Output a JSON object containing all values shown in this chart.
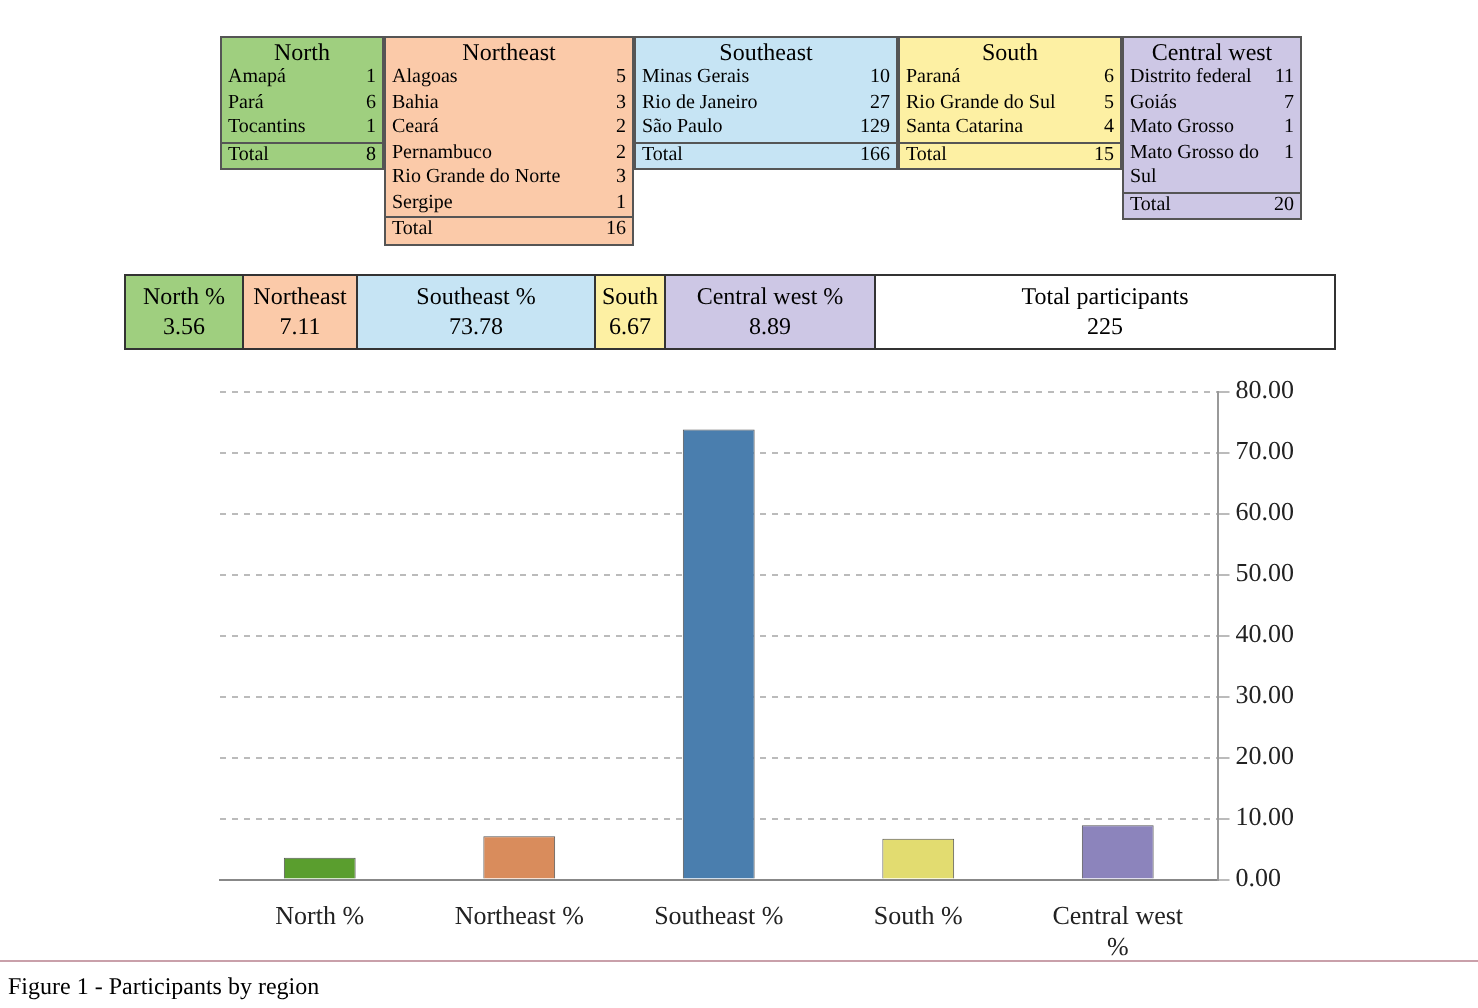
{
  "chart_data": [
    {
      "type": "other",
      "categories": [
        "North",
        "Northeast",
        "Southeast",
        "South",
        "Central west"
      ],
      "colors": [
        "#9fcf7f",
        "#fbcaa9",
        "#c6e4f4",
        "#fdf0a3",
        "#cdc7e5"
      ],
      "annotations": [
        {
          "text": "Amapá",
          "x": "North"
        },
        {
          "text": "1",
          "x": "North"
        },
        {
          "text": "Pará",
          "x": "North"
        },
        {
          "text": "6",
          "x": "North"
        },
        {
          "text": "Tocantins",
          "x": "North"
        },
        {
          "text": "1",
          "x": "North"
        },
        {
          "text": "Total",
          "x": "North"
        },
        {
          "text": "8",
          "x": "North"
        },
        {
          "text": "Alagoas",
          "x": "Northeast"
        },
        {
          "text": "5",
          "x": "Northeast"
        },
        {
          "text": "Bahia",
          "x": "Northeast"
        },
        {
          "text": "3",
          "x": "Northeast"
        },
        {
          "text": "Ceará",
          "x": "Northeast"
        },
        {
          "text": "2",
          "x": "Northeast"
        },
        {
          "text": "Pernambuco",
          "x": "Northeast"
        },
        {
          "text": "2",
          "x": "Northeast"
        },
        {
          "text": "Rio Grande do Norte",
          "x": "Northeast"
        },
        {
          "text": "3",
          "x": "Northeast"
        },
        {
          "text": "Sergipe",
          "x": "Northeast"
        },
        {
          "text": "1",
          "x": "Northeast"
        },
        {
          "text": "Total",
          "x": "Northeast"
        },
        {
          "text": "16",
          "x": "Northeast"
        },
        {
          "text": "Minas Gerais",
          "x": "Southeast"
        },
        {
          "text": "10",
          "x": "Southeast"
        },
        {
          "text": "Rio de Janeiro",
          "x": "Southeast"
        },
        {
          "text": "27",
          "x": "Southeast"
        },
        {
          "text": "São Paulo",
          "x": "Southeast"
        },
        {
          "text": "129",
          "x": "Southeast"
        },
        {
          "text": "Total",
          "x": "Southeast"
        },
        {
          "text": "166",
          "x": "Southeast"
        },
        {
          "text": "Paraná",
          "x": "South"
        },
        {
          "text": "6",
          "x": "South"
        },
        {
          "text": "Rio Grande do Sul",
          "x": "South"
        },
        {
          "text": "5",
          "x": "South"
        },
        {
          "text": "Santa Catarina",
          "x": "South"
        },
        {
          "text": "4",
          "x": "South"
        },
        {
          "text": "Total",
          "x": "South"
        },
        {
          "text": "15",
          "x": "South"
        },
        {
          "text": "Distrito federal",
          "x": "Central west"
        },
        {
          "text": "11",
          "x": "Central west"
        },
        {
          "text": "Goiás",
          "x": "Central west"
        },
        {
          "text": "7",
          "x": "Central west"
        },
        {
          "text": "Mato Grosso",
          "x": "Central west"
        },
        {
          "text": "1",
          "x": "Central west"
        },
        {
          "text": "Mato Grosso do Sul",
          "x": "Central west"
        },
        {
          "text": "1",
          "x": "Central west"
        },
        {
          "text": "Total",
          "x": "Central west"
        },
        {
          "text": "20",
          "x": "Central west"
        },
        "North %",
        "3.56",
        "Northeast",
        "7.11",
        "Southeast %",
        "73.78",
        "South",
        "6.67",
        "Central west %",
        "8.89",
        "Total participants",
        "225"
      ]
    },
    {
      "type": "bar",
      "categories": [
        "North %",
        "Northeast %",
        "Southeast %",
        "South %",
        "Central west %"
      ],
      "values": [
        3.6,
        7.1,
        73.8,
        6.7,
        8.9
      ],
      "colors": [
        "#5a9e2e",
        "#d98c5c",
        "#4a7eae",
        "#e2dc70",
        "#8c84bc"
      ],
      "ylim": [
        0,
        80
      ],
      "yticks": [
        {
          "value": 0,
          "label": "0.00"
        },
        {
          "value": 10,
          "label": "10.00"
        },
        {
          "value": 20,
          "label": "20.00"
        },
        {
          "value": 30,
          "label": "30.00"
        },
        {
          "value": 40,
          "label": "40.00"
        },
        {
          "value": 50,
          "label": "50.00"
        },
        {
          "value": 60,
          "label": "60.00"
        },
        {
          "value": 70,
          "label": "70.00"
        },
        {
          "value": 80,
          "label": "80.00"
        }
      ],
      "grid": "y",
      "annotations": [
        "Figure 1 - Participants by region"
      ]
    }
  ]
}
